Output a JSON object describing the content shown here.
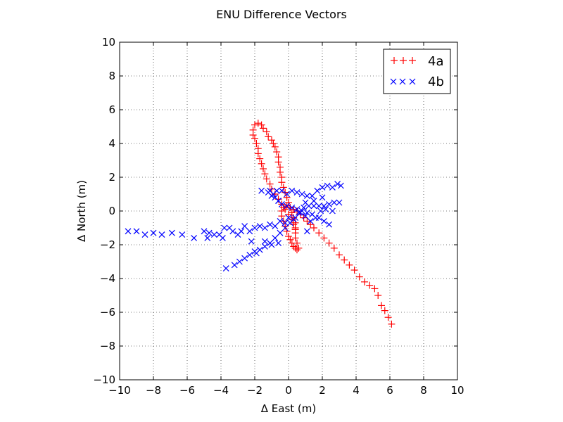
{
  "chart_data": {
    "type": "scatter",
    "title": "ENU Difference Vectors",
    "xlabel": "Δ East (m)",
    "ylabel": "Δ North (m)",
    "xlim": [
      -10,
      10
    ],
    "ylim": [
      -10,
      10
    ],
    "xticks": [
      -10,
      -8,
      -6,
      -4,
      -2,
      0,
      2,
      4,
      6,
      8,
      10
    ],
    "yticks": [
      -10,
      -8,
      -6,
      -4,
      -2,
      0,
      2,
      4,
      6,
      8,
      10
    ],
    "xtick_labels": [
      "−10",
      "−8",
      "−6",
      "−4",
      "−2",
      "0",
      "2",
      "4",
      "6",
      "8",
      "10"
    ],
    "ytick_labels": [
      "−10",
      "−8",
      "−6",
      "−4",
      "−2",
      "0",
      "2",
      "4",
      "6",
      "8",
      "10"
    ],
    "grid": true,
    "legend_position": "top-right",
    "series": [
      {
        "name": "4a",
        "marker": "plus",
        "color": "#ff0000",
        "points": [
          [
            6.1,
            -6.7
          ],
          [
            5.9,
            -6.3
          ],
          [
            5.7,
            -5.9
          ],
          [
            5.5,
            -5.6
          ],
          [
            5.3,
            -5.0
          ],
          [
            5.1,
            -4.6
          ],
          [
            4.8,
            -4.4
          ],
          [
            4.5,
            -4.2
          ],
          [
            4.2,
            -3.9
          ],
          [
            3.9,
            -3.5
          ],
          [
            3.6,
            -3.2
          ],
          [
            3.3,
            -2.9
          ],
          [
            3.0,
            -2.6
          ],
          [
            2.7,
            -2.2
          ],
          [
            2.4,
            -1.9
          ],
          [
            2.1,
            -1.6
          ],
          [
            1.8,
            -1.3
          ],
          [
            1.5,
            -1.0
          ],
          [
            1.3,
            -0.8
          ],
          [
            1.1,
            -0.6
          ],
          [
            0.9,
            -0.4
          ],
          [
            0.7,
            -0.2
          ],
          [
            0.5,
            0.0
          ],
          [
            0.3,
            0.1
          ],
          [
            0.1,
            0.2
          ],
          [
            -0.1,
            0.3
          ],
          [
            -0.3,
            0.2
          ],
          [
            -0.4,
            0.0
          ],
          [
            -0.4,
            -0.3
          ],
          [
            -0.3,
            -0.6
          ],
          [
            -0.2,
            -0.9
          ],
          [
            -0.1,
            -1.2
          ],
          [
            0.0,
            -1.5
          ],
          [
            0.1,
            -1.7
          ],
          [
            0.2,
            -1.9
          ],
          [
            0.3,
            -2.1
          ],
          [
            0.4,
            -2.2
          ],
          [
            0.5,
            -2.3
          ],
          [
            0.6,
            -2.2
          ],
          [
            0.5,
            -1.9
          ],
          [
            0.4,
            -1.6
          ],
          [
            0.4,
            -1.3
          ],
          [
            0.4,
            -1.0
          ],
          [
            0.4,
            -0.7
          ],
          [
            0.3,
            -0.4
          ],
          [
            0.2,
            -0.1
          ],
          [
            0.1,
            0.2
          ],
          [
            0.0,
            0.5
          ],
          [
            -0.1,
            0.8
          ],
          [
            -0.2,
            1.1
          ],
          [
            -0.3,
            1.4
          ],
          [
            -0.4,
            1.7
          ],
          [
            -0.4,
            2.0
          ],
          [
            -0.5,
            2.3
          ],
          [
            -0.5,
            2.6
          ],
          [
            -0.6,
            2.9
          ],
          [
            -0.6,
            3.2
          ],
          [
            -0.7,
            3.5
          ],
          [
            -0.8,
            3.8
          ],
          [
            -0.9,
            4.0
          ],
          [
            -1.0,
            4.2
          ],
          [
            -1.2,
            4.4
          ],
          [
            -1.3,
            4.7
          ],
          [
            -1.5,
            4.9
          ],
          [
            -1.6,
            5.1
          ],
          [
            -1.8,
            5.2
          ],
          [
            -2.0,
            5.1
          ],
          [
            -2.1,
            4.8
          ],
          [
            -2.1,
            4.5
          ],
          [
            -2.0,
            4.3
          ],
          [
            -1.9,
            4.0
          ],
          [
            -1.8,
            3.7
          ],
          [
            -1.8,
            3.4
          ],
          [
            -1.7,
            3.1
          ],
          [
            -1.6,
            2.8
          ],
          [
            -1.5,
            2.5
          ],
          [
            -1.4,
            2.2
          ],
          [
            -1.3,
            1.9
          ],
          [
            -1.1,
            1.6
          ],
          [
            -1.0,
            1.3
          ],
          [
            -0.8,
            1.0
          ],
          [
            -0.6,
            0.7
          ],
          [
            -0.4,
            0.4
          ],
          [
            -0.2,
            0.1
          ],
          [
            0.0,
            -0.2
          ],
          [
            0.2,
            -0.5
          ],
          [
            0.3,
            -0.8
          ],
          [
            0.4,
            -1.1
          ]
        ]
      },
      {
        "name": "4b",
        "marker": "x",
        "color": "#0000ff",
        "points": [
          [
            -9.5,
            -1.2
          ],
          [
            -9.0,
            -1.2
          ],
          [
            -8.5,
            -1.4
          ],
          [
            -8.0,
            -1.3
          ],
          [
            -7.5,
            -1.4
          ],
          [
            -6.9,
            -1.3
          ],
          [
            -6.3,
            -1.4
          ],
          [
            -5.6,
            -1.6
          ],
          [
            -5.0,
            -1.2
          ],
          [
            -4.7,
            -1.3
          ],
          [
            -4.8,
            -1.6
          ],
          [
            -4.4,
            -1.4
          ],
          [
            -4.1,
            -1.4
          ],
          [
            -3.9,
            -1.6
          ],
          [
            -3.8,
            -1.0
          ],
          [
            -3.5,
            -1.0
          ],
          [
            -3.3,
            -1.2
          ],
          [
            -3.0,
            -1.4
          ],
          [
            -2.8,
            -1.2
          ],
          [
            -2.6,
            -0.9
          ],
          [
            -2.3,
            -1.2
          ],
          [
            -2.0,
            -1.0
          ],
          [
            -1.7,
            -0.9
          ],
          [
            -1.4,
            -1.0
          ],
          [
            -1.1,
            -0.8
          ],
          [
            -0.8,
            -0.9
          ],
          [
            -0.5,
            -0.6
          ],
          [
            -0.2,
            -0.7
          ],
          [
            0.0,
            -0.4
          ],
          [
            0.3,
            -0.5
          ],
          [
            0.6,
            -0.1
          ],
          [
            0.9,
            0.2
          ],
          [
            1.2,
            0.3
          ],
          [
            1.5,
            0.3
          ],
          [
            1.8,
            0.3
          ],
          [
            2.1,
            0.3
          ],
          [
            2.4,
            0.4
          ],
          [
            2.7,
            0.5
          ],
          [
            3.0,
            0.5
          ],
          [
            2.4,
            -0.8
          ],
          [
            2.1,
            -0.6
          ],
          [
            1.8,
            -0.4
          ],
          [
            1.4,
            -0.2
          ],
          [
            1.1,
            -0.1
          ],
          [
            0.8,
            0.0
          ],
          [
            0.5,
            0.1
          ],
          [
            0.2,
            0.2
          ],
          [
            -0.1,
            0.3
          ],
          [
            -0.4,
            0.4
          ],
          [
            -0.6,
            0.6
          ],
          [
            -0.8,
            0.8
          ],
          [
            -0.9,
            1.0
          ],
          [
            -1.1,
            1.2
          ],
          [
            -1.2,
            1.1
          ],
          [
            -0.7,
            1.2
          ],
          [
            -0.4,
            1.2
          ],
          [
            -0.1,
            1.0
          ],
          [
            0.2,
            1.2
          ],
          [
            0.5,
            1.1
          ],
          [
            0.8,
            1.0
          ],
          [
            1.1,
            0.9
          ],
          [
            1.4,
            0.9
          ],
          [
            1.7,
            1.2
          ],
          [
            2.0,
            1.4
          ],
          [
            2.3,
            1.5
          ],
          [
            2.6,
            1.4
          ],
          [
            2.9,
            1.6
          ],
          [
            3.1,
            1.5
          ],
          [
            -1.6,
            1.2
          ],
          [
            -1.0,
            0.9
          ],
          [
            -0.6,
            0.6
          ],
          [
            -3.7,
            -3.4
          ],
          [
            -3.2,
            -3.2
          ],
          [
            -2.9,
            -3.0
          ],
          [
            -2.6,
            -2.8
          ],
          [
            -2.3,
            -2.6
          ],
          [
            -2.0,
            -2.4
          ],
          [
            -1.7,
            -2.3
          ],
          [
            -1.4,
            -2.1
          ],
          [
            -1.1,
            -1.9
          ],
          [
            -0.8,
            -1.6
          ],
          [
            -0.5,
            -1.3
          ],
          [
            -0.2,
            -1.0
          ],
          [
            0.1,
            -0.7
          ],
          [
            0.4,
            -0.4
          ],
          [
            0.7,
            -0.1
          ],
          [
            1.0,
            -0.3
          ],
          [
            1.1,
            -1.2
          ],
          [
            1.3,
            -0.6
          ],
          [
            1.6,
            -0.4
          ],
          [
            1.9,
            0.0
          ],
          [
            2.2,
            0.1
          ],
          [
            2.6,
            0.0
          ],
          [
            2.0,
            0.8
          ],
          [
            1.5,
            0.6
          ],
          [
            1.0,
            0.5
          ],
          [
            -1.4,
            -1.8
          ],
          [
            -1.0,
            -2.0
          ],
          [
            -0.6,
            -1.9
          ],
          [
            -2.2,
            -1.8
          ],
          [
            -1.9,
            -2.5
          ]
        ]
      }
    ]
  }
}
